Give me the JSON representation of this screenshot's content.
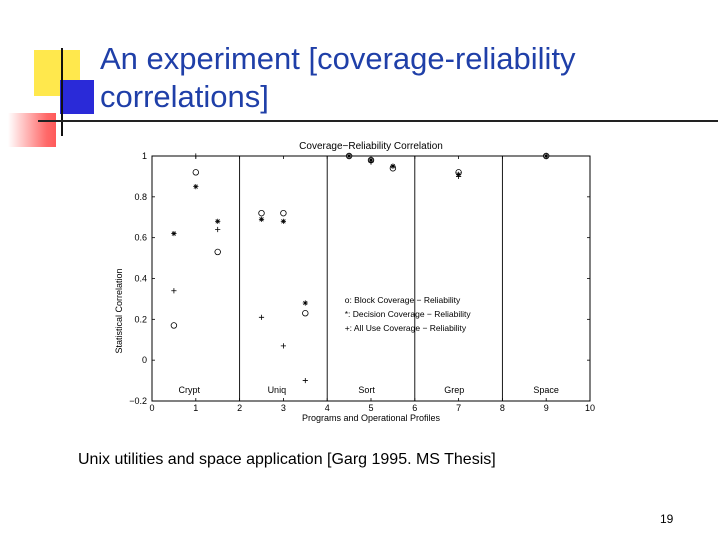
{
  "slide": {
    "title": "An experiment [coverage-reliability correlations]",
    "caption": "Unix utilities and space application [Garg 1995. MS Thesis]",
    "page_number": "19"
  },
  "chart_data": {
    "type": "scatter",
    "title": "Coverage−Reliability Correlation",
    "xlabel": "Programs and Operational Profiles",
    "ylabel": "Statistical Correlation",
    "xlim": [
      0,
      10
    ],
    "ylim": [
      -0.2,
      1
    ],
    "xticks": [
      "0",
      "1",
      "2",
      "3",
      "4",
      "5",
      "6",
      "7",
      "8",
      "9",
      "10"
    ],
    "yticks": [
      "−0.2",
      "0",
      "0.2",
      "0.4",
      "0.6",
      "0.8",
      "1"
    ],
    "region_dividers_x": [
      2,
      4,
      6,
      8
    ],
    "group_labels": [
      {
        "label": "Crypt",
        "x": 0.85
      },
      {
        "label": "Uniq",
        "x": 2.85
      },
      {
        "label": "Sort",
        "x": 4.9
      },
      {
        "label": "Grep",
        "x": 6.9
      },
      {
        "label": "Space",
        "x": 9.0
      }
    ],
    "legend": {
      "position": "lower-middle",
      "entries": [
        "o: Block Coverage − Reliability",
        "*: Decision Coverage − Reliability",
        "+: All Use Coverage − Reliability"
      ]
    },
    "series": [
      {
        "marker": "o",
        "x": [
          0.5,
          1.0,
          1.5,
          2.5,
          3.0,
          3.5,
          4.5,
          5.0,
          5.5,
          7.0,
          9.0
        ],
        "y": [
          0.17,
          0.92,
          0.53,
          0.72,
          0.72,
          0.23,
          1.0,
          0.98,
          0.94,
          0.92,
          1.0
        ]
      },
      {
        "marker": "*",
        "x": [
          0.5,
          1.0,
          1.5,
          2.5,
          3.0,
          3.5,
          4.5,
          5.0,
          5.5,
          7.0,
          9.0
        ],
        "y": [
          0.62,
          0.85,
          0.68,
          0.69,
          0.68,
          0.28,
          1.0,
          0.98,
          0.95,
          0.91,
          1.0
        ]
      },
      {
        "marker": "+",
        "x": [
          0.5,
          1.0,
          1.5,
          2.5,
          3.0,
          3.5,
          4.5,
          5.0,
          5.5,
          7.0,
          9.0
        ],
        "y": [
          0.34,
          1.0,
          0.64,
          0.21,
          0.07,
          -0.1,
          1.0,
          0.97,
          0.95,
          0.9,
          1.0
        ]
      }
    ]
  }
}
